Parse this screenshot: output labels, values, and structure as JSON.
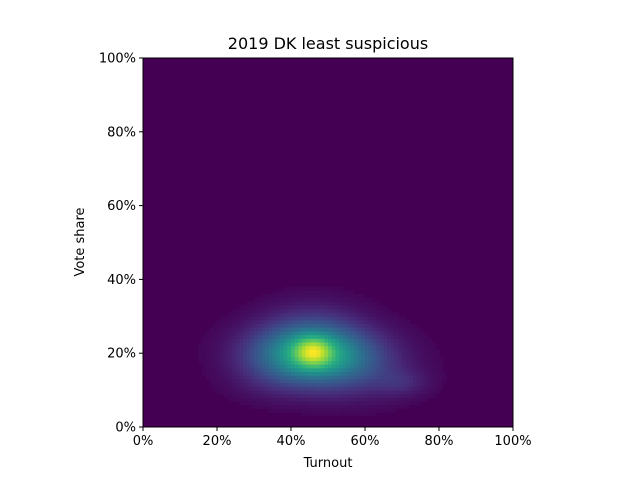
{
  "chart_data": {
    "type": "heatmap",
    "title": "2019 DK least suspicious",
    "xlabel": "Turnout",
    "ylabel": "Vote share",
    "xlim": [
      0,
      100
    ],
    "ylim": [
      0,
      100
    ],
    "x_ticks": [
      "0%",
      "20%",
      "40%",
      "60%",
      "80%",
      "100%"
    ],
    "y_ticks": [
      "0%",
      "20%",
      "40%",
      "60%",
      "80%",
      "100%"
    ],
    "colormap": "viridis",
    "background_color": "#440154",
    "grid": false,
    "density_blobs": [
      {
        "cx": 45,
        "cy": 20,
        "sx": 11,
        "sy": 5.5,
        "w": 1.0
      },
      {
        "cx": 46,
        "cy": 20.5,
        "sx": 3.5,
        "sy": 2.8,
        "w": 0.55
      },
      {
        "cx": 57,
        "cy": 16,
        "sx": 11,
        "sy": 6,
        "w": 0.22
      },
      {
        "cx": 70,
        "cy": 12,
        "sx": 5,
        "sy": 2.5,
        "w": 0.14
      },
      {
        "cx": 46,
        "cy": 29,
        "sx": 9,
        "sy": 5,
        "w": 0.12
      },
      {
        "cx": 34,
        "cy": 12,
        "sx": 8,
        "sy": 4,
        "w": 0.06
      }
    ]
  }
}
